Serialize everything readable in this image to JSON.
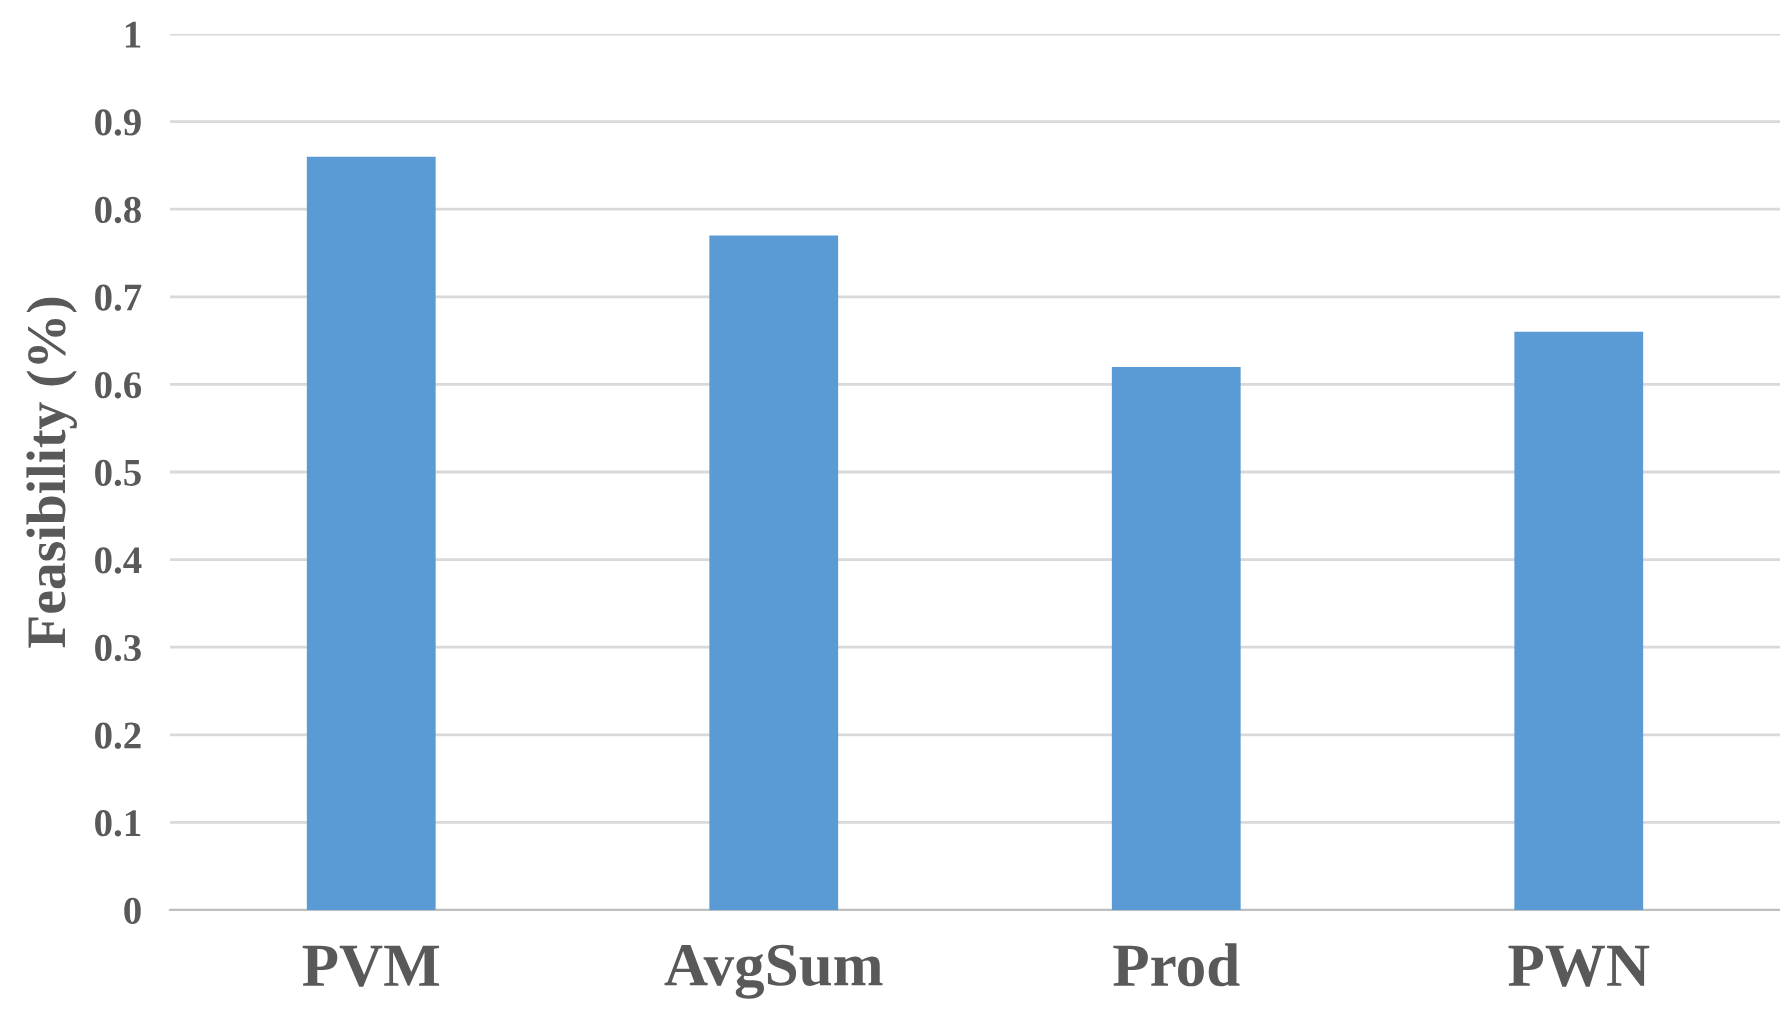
{
  "chart_data": {
    "type": "bar",
    "ylabel": "Feasibility (%)",
    "categories": [
      "PVM",
      "AvgSum",
      "Prod",
      "PWN"
    ],
    "values": [
      0.86,
      0.77,
      0.62,
      0.66
    ],
    "color": "#5b9bd5",
    "ylim": [
      0,
      1
    ],
    "yticks": [
      {
        "value": 0,
        "label": "0"
      },
      0.1,
      0.2,
      0.3,
      0.4,
      0.5,
      0.6,
      0.7,
      0.8,
      0.9,
      {
        "value": 1,
        "label": "1"
      }
    ],
    "grid": "y",
    "legend": false
  }
}
